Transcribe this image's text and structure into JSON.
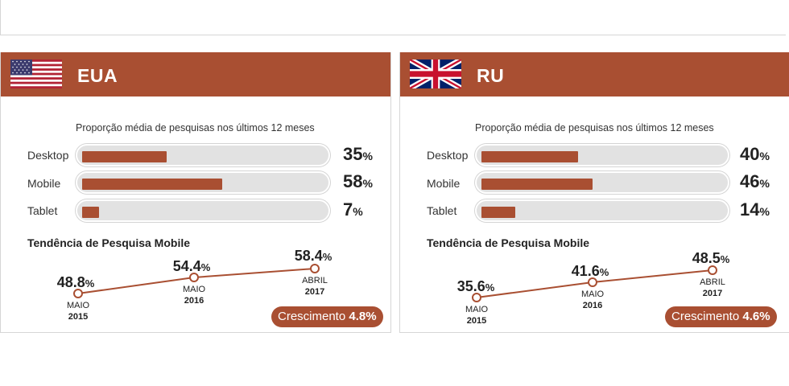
{
  "panels": [
    {
      "country": "EUA",
      "flag_icon": "usa-flag-icon",
      "subtitle": "Proporção média de pesquisas nos últimos 12 meses",
      "bars": [
        {
          "label": "Desktop",
          "value": 35,
          "unit": "%"
        },
        {
          "label": "Mobile",
          "value": 58,
          "unit": "%"
        },
        {
          "label": "Tablet",
          "value": 7,
          "unit": "%"
        }
      ],
      "trend_title": "Tendência de Pesquisa Mobile",
      "trend": [
        {
          "value": "48.8",
          "unit": "%",
          "period": "MAIO",
          "year": "2015"
        },
        {
          "value": "54.4",
          "unit": "%",
          "period": "MAIO",
          "year": "2016"
        },
        {
          "value": "58.4",
          "unit": "%",
          "period": "ABRIL",
          "year": "2017"
        }
      ],
      "growth_label": "Crescimento",
      "growth_value": "4.8%"
    },
    {
      "country": "RU",
      "flag_icon": "uk-flag-icon",
      "subtitle": "Proporção média de pesquisas nos últimos 12 meses",
      "bars": [
        {
          "label": "Desktop",
          "value": 40,
          "unit": "%"
        },
        {
          "label": "Mobile",
          "value": 46,
          "unit": "%"
        },
        {
          "label": "Tablet",
          "value": 14,
          "unit": "%"
        }
      ],
      "trend_title": "Tendência de Pesquisa Mobile",
      "trend": [
        {
          "value": "35.6",
          "unit": "%",
          "period": "MAIO",
          "year": "2015"
        },
        {
          "value": "41.6",
          "unit": "%",
          "period": "MAIO",
          "year": "2016"
        },
        {
          "value": "48.5",
          "unit": "%",
          "period": "ABRIL",
          "year": "2017"
        }
      ],
      "growth_label": "Crescimento",
      "growth_value": "4.6%"
    }
  ],
  "colors": {
    "accent": "#a94f32",
    "track": "#e2e2e2"
  },
  "chart_data": [
    {
      "type": "bar",
      "title": "Proporção média de pesquisas nos últimos 12 meses",
      "categories": [
        "Desktop",
        "Mobile",
        "Tablet"
      ],
      "values": [
        35,
        58,
        7
      ],
      "ylim": [
        0,
        100
      ]
    },
    {
      "type": "line",
      "title": "Tendência de Pesquisa Mobile",
      "x": [
        "MAIO 2015",
        "MAIO 2016",
        "ABRIL 2017"
      ],
      "values": [
        48.8,
        54.4,
        58.4
      ]
    },
    {
      "type": "bar",
      "title": "Proporção média de pesquisas nos últimos 12 meses",
      "categories": [
        "Desktop",
        "Mobile",
        "Tablet"
      ],
      "values": [
        40,
        46,
        14
      ],
      "ylim": [
        0,
        100
      ]
    },
    {
      "type": "line",
      "title": "Tendência de Pesquisa Mobile",
      "x": [
        "MAIO 2015",
        "MAIO 2016",
        "ABRIL 2017"
      ],
      "values": [
        35.6,
        41.6,
        48.5
      ]
    }
  ]
}
